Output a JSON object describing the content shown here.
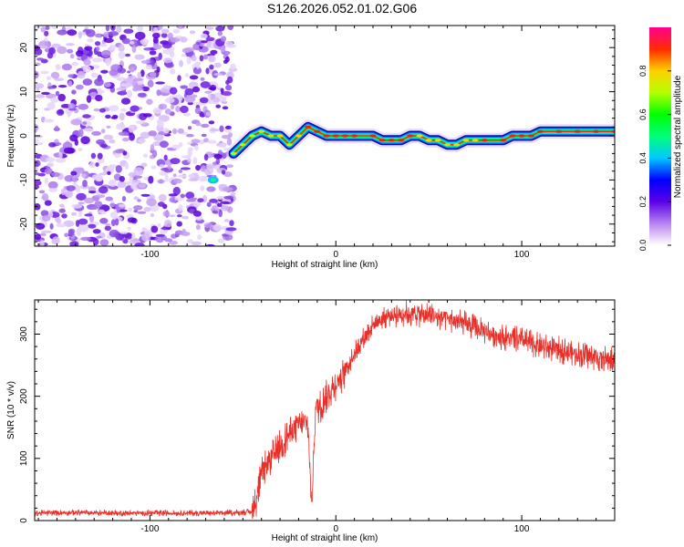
{
  "title": "S126.2026.052.01.02.G06",
  "chart_data": [
    {
      "type": "heatmap",
      "name": "spectrogram",
      "xlabel": "Height of straight line (km)",
      "ylabel": "Frequency (Hz)",
      "xlim": [
        -162,
        150
      ],
      "ylim": [
        -25,
        25
      ],
      "xticks": [
        -100,
        0,
        100
      ],
      "xtick_labels": [
        "-100",
        "0",
        "100"
      ],
      "yticks": [
        -20,
        -10,
        0,
        10,
        20
      ],
      "ytick_labels": [
        "-20",
        "-10",
        "0",
        "10",
        "20"
      ],
      "noise_region_x": [
        -162,
        -55
      ],
      "ridge": {
        "x": [
          -55,
          -50,
          -45,
          -40,
          -35,
          -30,
          -25,
          -20,
          -15,
          -10,
          -5,
          0,
          5,
          10,
          20,
          25,
          30,
          35,
          40,
          45,
          50,
          55,
          60,
          65,
          70,
          75,
          80,
          90,
          95,
          100,
          105,
          110,
          120,
          130,
          140,
          150
        ],
        "freq": [
          -4,
          -2,
          0,
          1,
          0,
          0,
          -2,
          0,
          2,
          1,
          0,
          0,
          0,
          0,
          0,
          -1,
          -1,
          -1,
          0,
          0,
          -1,
          -1,
          -2,
          -2,
          -1,
          -1,
          -1,
          -1,
          0,
          0,
          0,
          1,
          1,
          1,
          1,
          1
        ],
        "amplitude": [
          0.5,
          0.6,
          0.7,
          0.75,
          0.8,
          0.75,
          0.65,
          0.8,
          0.85,
          0.9,
          0.9,
          0.9,
          0.9,
          0.9,
          0.9,
          0.9,
          0.9,
          0.85,
          0.85,
          0.8,
          0.8,
          0.8,
          0.8,
          0.75,
          0.8,
          0.8,
          0.85,
          0.85,
          0.85,
          0.85,
          0.85,
          0.85,
          0.85,
          0.85,
          0.85,
          0.85
        ]
      },
      "colorbar": {
        "label": "Normalized spectral amplitude",
        "range": [
          0,
          1
        ],
        "ticks": [
          0.0,
          0.2,
          0.4,
          0.6,
          0.8
        ],
        "tick_labels": [
          "0.0",
          "0.2",
          "0.4",
          "0.6",
          "0.8"
        ]
      }
    },
    {
      "type": "line",
      "name": "snr",
      "xlabel": "Height of straight line (km)",
      "ylabel": "SNR (10 * v/v)",
      "xlim": [
        -162,
        150
      ],
      "ylim": [
        0,
        355
      ],
      "xticks": [
        -100,
        0,
        100
      ],
      "xtick_labels": [
        "-100",
        "0",
        "100"
      ],
      "yticks": [
        0,
        100,
        200,
        300
      ],
      "ytick_labels": [
        "0",
        "100",
        "200",
        "300"
      ],
      "color": "#e8302a",
      "series": [
        {
          "name": "SNR",
          "x": [
            -162,
            -140,
            -120,
            -100,
            -80,
            -60,
            -45,
            -43,
            -40,
            -35,
            -30,
            -25,
            -20,
            -15,
            -13,
            -11,
            -8,
            -5,
            0,
            5,
            10,
            15,
            20,
            25,
            30,
            35,
            40,
            45,
            50,
            60,
            70,
            80,
            90,
            100,
            110,
            120,
            130,
            140,
            150
          ],
          "values": [
            12,
            13,
            12,
            12,
            12,
            12,
            14,
            30,
            75,
            100,
            120,
            140,
            155,
            155,
            20,
            180,
            185,
            200,
            220,
            240,
            270,
            295,
            315,
            325,
            330,
            333,
            333,
            332,
            330,
            325,
            315,
            305,
            295,
            290,
            280,
            275,
            268,
            262,
            258
          ]
        }
      ]
    }
  ]
}
